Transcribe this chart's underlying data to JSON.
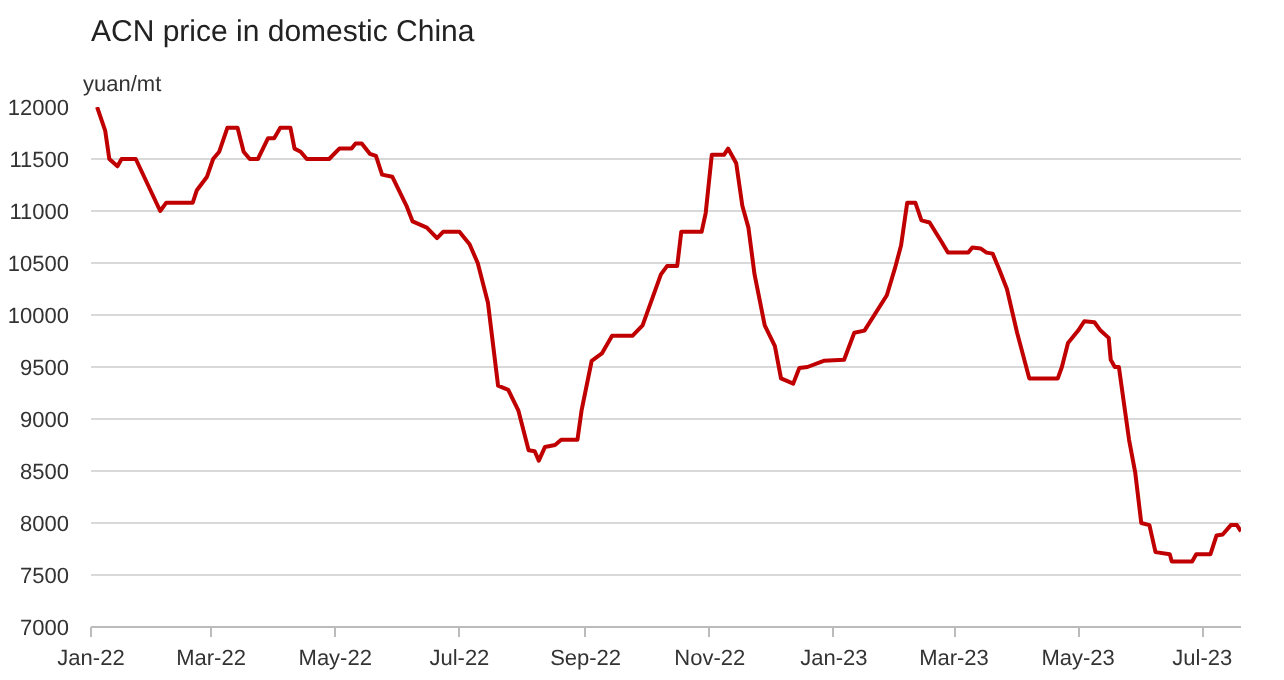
{
  "chart_data": {
    "type": "line",
    "title": "ACN price in domestic China",
    "ylabel": "yuan/mt",
    "x": [
      "2022-01-04",
      "2022-01-08",
      "2022-01-10",
      "2022-01-14",
      "2022-01-16",
      "2022-01-23",
      "2022-02-04",
      "2022-02-07",
      "2022-02-20",
      "2022-02-22",
      "2022-02-27",
      "2022-03-02",
      "2022-03-05",
      "2022-03-09",
      "2022-03-14",
      "2022-03-17",
      "2022-03-20",
      "2022-03-24",
      "2022-03-29",
      "2022-04-01",
      "2022-04-04",
      "2022-04-09",
      "2022-04-11",
      "2022-04-14",
      "2022-04-17",
      "2022-04-28",
      "2022-05-03",
      "2022-05-09",
      "2022-05-11",
      "2022-05-14",
      "2022-05-18",
      "2022-05-21",
      "2022-05-24",
      "2022-05-29",
      "2022-06-05",
      "2022-06-08",
      "2022-06-15",
      "2022-06-20",
      "2022-06-23",
      "2022-07-01",
      "2022-07-06",
      "2022-07-10",
      "2022-07-15",
      "2022-07-20",
      "2022-07-25",
      "2022-07-30",
      "2022-08-04",
      "2022-08-07",
      "2022-08-09",
      "2022-08-12",
      "2022-08-17",
      "2022-08-20",
      "2022-08-28",
      "2022-08-30",
      "2022-09-04",
      "2022-09-09",
      "2022-09-14",
      "2022-09-24",
      "2022-09-29",
      "2022-10-08",
      "2022-10-11",
      "2022-10-16",
      "2022-10-18",
      "2022-10-28",
      "2022-10-30",
      "2022-11-02",
      "2022-11-08",
      "2022-11-10",
      "2022-11-14",
      "2022-11-17",
      "2022-11-20",
      "2022-11-23",
      "2022-11-28",
      "2022-12-03",
      "2022-12-06",
      "2022-12-12",
      "2022-12-15",
      "2022-12-19",
      "2022-12-27",
      "2023-01-06",
      "2023-01-11",
      "2023-01-16",
      "2023-01-27",
      "2023-01-31",
      "2023-02-03",
      "2023-02-06",
      "2023-02-10",
      "2023-02-13",
      "2023-02-17",
      "2023-02-23",
      "2023-02-26",
      "2023-03-08",
      "2023-03-10",
      "2023-03-14",
      "2023-03-17",
      "2023-03-20",
      "2023-03-23",
      "2023-03-27",
      "2023-04-01",
      "2023-04-07",
      "2023-04-21",
      "2023-04-23",
      "2023-04-26",
      "2023-05-01",
      "2023-05-04",
      "2023-05-09",
      "2023-05-12",
      "2023-05-16",
      "2023-05-17",
      "2023-05-19",
      "2023-05-21",
      "2023-05-26",
      "2023-05-29",
      "2023-06-01",
      "2023-06-05",
      "2023-06-08",
      "2023-06-15",
      "2023-06-16",
      "2023-06-26",
      "2023-06-28",
      "2023-07-05",
      "2023-07-08",
      "2023-07-11",
      "2023-07-15",
      "2023-07-18",
      "2023-07-20"
    ],
    "series": [
      {
        "color": "#c00000",
        "values": [
          12000,
          11770,
          11500,
          11430,
          11500,
          11500,
          11000,
          11080,
          11080,
          11200,
          11330,
          11500,
          11570,
          11800,
          11800,
          11570,
          11500,
          11500,
          11700,
          11700,
          11800,
          11800,
          11600,
          11570,
          11500,
          11500,
          11600,
          11600,
          11650,
          11650,
          11550,
          11530,
          11350,
          11330,
          11050,
          10900,
          10840,
          10740,
          10800,
          10800,
          10680,
          10500,
          10120,
          9320,
          9280,
          9080,
          8700,
          8690,
          8600,
          8730,
          8750,
          8800,
          8800,
          9080,
          9560,
          9630,
          9800,
          9800,
          9900,
          10390,
          10470,
          10470,
          10800,
          10800,
          10980,
          11540,
          11540,
          11600,
          11460,
          11050,
          10840,
          10390,
          9900,
          9700,
          9390,
          9340,
          9490,
          9500,
          9560,
          9570,
          9830,
          9850,
          10190,
          10450,
          10670,
          11080,
          11080,
          10910,
          10890,
          10700,
          10600,
          10600,
          10650,
          10640,
          10600,
          10590,
          10450,
          10250,
          9830,
          9390,
          9390,
          9500,
          9730,
          9850,
          9940,
          9930,
          9850,
          9780,
          9570,
          9500,
          9500,
          8800,
          8490,
          8000,
          7980,
          7720,
          7700,
          7630,
          7630,
          7700,
          7700,
          7880,
          7890,
          7980,
          7980,
          7920
        ]
      }
    ],
    "xlim": [
      "2022-01-01",
      "2023-07-20"
    ],
    "xticks": [
      {
        "value": "2022-01-01",
        "label": "Jan-22"
      },
      {
        "value": "2022-03-01",
        "label": "Mar-22"
      },
      {
        "value": "2022-05-01",
        "label": "May-22"
      },
      {
        "value": "2022-07-01",
        "label": "Jul-22"
      },
      {
        "value": "2022-09-01",
        "label": "Sep-22"
      },
      {
        "value": "2022-11-01",
        "label": "Nov-22"
      },
      {
        "value": "2023-01-01",
        "label": "Jan-23"
      },
      {
        "value": "2023-03-01",
        "label": "Mar-23"
      },
      {
        "value": "2023-05-01",
        "label": "May-23"
      },
      {
        "value": "2023-07-01",
        "label": "Jul-23"
      }
    ],
    "ylim": [
      7000,
      12000
    ],
    "yticks": [
      7000,
      7500,
      8000,
      8500,
      9000,
      9500,
      10000,
      10500,
      11000,
      11500,
      12000
    ],
    "grid": "y"
  }
}
